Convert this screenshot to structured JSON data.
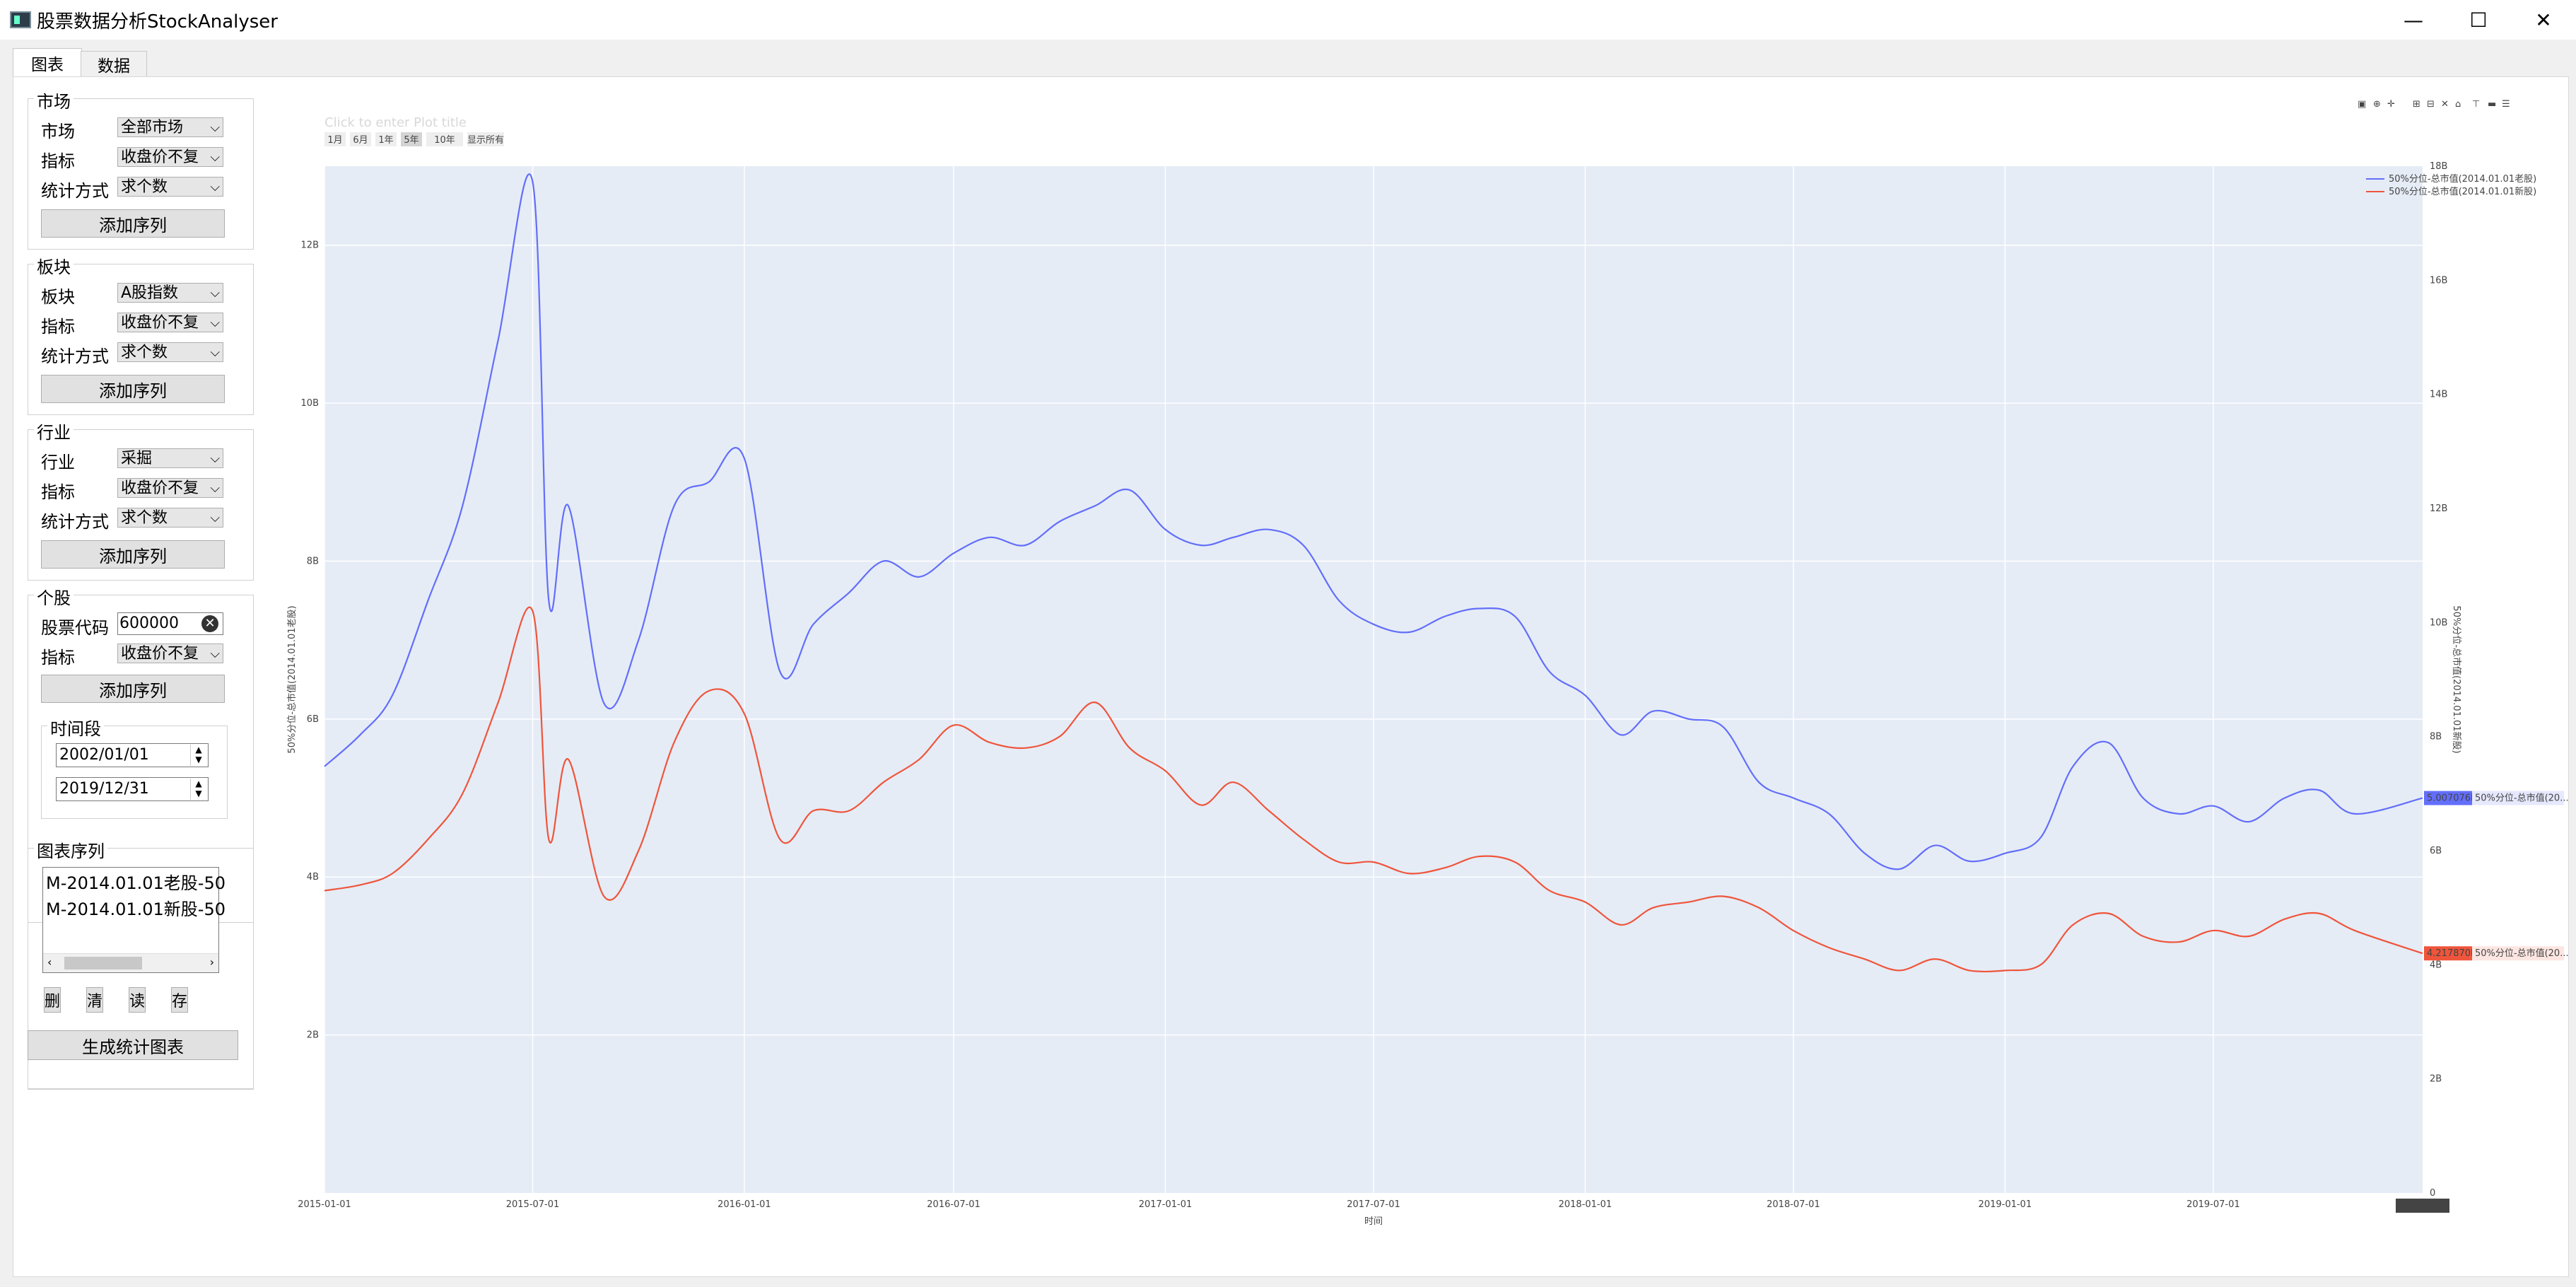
{
  "window": {
    "title": "股票数据分析StockAnalyser",
    "minimize": "—",
    "maximize": "☐",
    "close": "✕"
  },
  "tabs": [
    {
      "label": "图表"
    },
    {
      "label": "数据"
    }
  ],
  "market": {
    "title": "市场",
    "field_label": "市场",
    "field_value": "全部市场",
    "indicator_label": "指标",
    "indicator_value": "收盘价不复",
    "stat_label": "统计方式",
    "stat_value": "求个数",
    "add_label": "添加序列"
  },
  "sector": {
    "title": "板块",
    "field_label": "板块",
    "field_value": "A股指数",
    "indicator_label": "指标",
    "indicator_value": "收盘价不复",
    "stat_label": "统计方式",
    "stat_value": "求个数",
    "add_label": "添加序列"
  },
  "industry": {
    "title": "行业",
    "field_label": "行业",
    "field_value": "采掘",
    "indicator_label": "指标",
    "indicator_value": "收盘价不复",
    "stat_label": "统计方式",
    "stat_value": "求个数",
    "add_label": "添加序列"
  },
  "stock": {
    "title": "个股",
    "code_label": "股票代码",
    "code_value": "600000",
    "indicator_label": "指标",
    "indicator_value": "收盘价不复",
    "add_label": "添加序列"
  },
  "period": {
    "title": "时间段",
    "start": "2002/01/01",
    "end": "2019/12/31"
  },
  "series_list": {
    "title": "图表序列",
    "items": [
      "M-2014.01.01老股-50",
      "M-2014.01.01新股-50"
    ],
    "delete": "删",
    "clear": "清",
    "read": "读",
    "save": "存"
  },
  "generate_label": "生成统计图表",
  "chart": {
    "range_buttons": [
      "1月",
      "6月",
      "1年",
      "5年",
      "10年",
      "显示所有"
    ],
    "title_placeholder": "Click to enter Plot title",
    "xlabel": "时间",
    "ylabel_left": "50%分位-总市值(2014.01.01老股)",
    "ylabel_right": "50%分位-总市值(2014.01.01新股)",
    "legend": [
      "50%分位-总市值(2014.01.01老股)",
      "50%分位-总市值(2014.01.01新股)"
    ],
    "x_ticks": [
      "2015-01-01",
      "2015-07-01",
      "2016-01-01",
      "2016-07-01",
      "2017-01-01",
      "2017-07-01",
      "2018-01-01",
      "2018-07-01",
      "2019-01-01",
      "2019-07-01"
    ],
    "y_left_ticks": [
      "2B",
      "4B",
      "6B",
      "8B",
      "10B",
      "12B"
    ],
    "y_right_ticks": [
      "0",
      "2B",
      "4B",
      "6B",
      "8B",
      "10B",
      "12B",
      "14B",
      "16B",
      "18B"
    ],
    "hover_x": "2019-12-30",
    "hover_blue_value": "5.007076B",
    "hover_blue_label": "50%分位-总市值(20...",
    "hover_red_value": "4.217870B",
    "hover_red_label": "50%分位-总市值(20...",
    "colors": {
      "blue": "#636efa",
      "red": "#ef553b",
      "plot_bg": "#e5ecf6"
    }
  },
  "chart_data": {
    "type": "line",
    "xlabel": "时间",
    "ylabel": "50%分位-总市值(2014.01.01老股)",
    "y2label": "50%分位-总市值(2014.01.01新股)",
    "ylim": [
      0,
      13
    ],
    "y2lim": [
      0,
      18
    ],
    "x": [
      "2015-01-01",
      "2015-02-01",
      "2015-03-01",
      "2015-04-01",
      "2015-05-01",
      "2015-06-01",
      "2015-07-01",
      "2015-07-15",
      "2015-08-01",
      "2015-09-01",
      "2015-10-01",
      "2015-11-01",
      "2015-12-01",
      "2016-01-01",
      "2016-02-01",
      "2016-03-01",
      "2016-04-01",
      "2016-05-01",
      "2016-06-01",
      "2016-07-01",
      "2016-08-01",
      "2016-09-01",
      "2016-10-01",
      "2016-11-01",
      "2016-12-01",
      "2017-01-01",
      "2017-02-01",
      "2017-03-01",
      "2017-04-01",
      "2017-05-01",
      "2017-06-01",
      "2017-07-01",
      "2017-08-01",
      "2017-09-01",
      "2017-10-01",
      "2017-11-01",
      "2017-12-01",
      "2018-01-01",
      "2018-02-01",
      "2018-03-01",
      "2018-04-01",
      "2018-05-01",
      "2018-06-01",
      "2018-07-01",
      "2018-08-01",
      "2018-09-01",
      "2018-10-01",
      "2018-11-01",
      "2018-12-01",
      "2019-01-01",
      "2019-02-01",
      "2019-03-01",
      "2019-04-01",
      "2019-05-01",
      "2019-06-01",
      "2019-07-01",
      "2019-08-01",
      "2019-09-01",
      "2019-10-01",
      "2019-11-01",
      "2019-12-30"
    ],
    "series": [
      {
        "name": "50%分位-总市值(2014.01.01老股)",
        "axis": "left",
        "values": [
          5.4,
          5.8,
          6.3,
          7.5,
          8.7,
          10.8,
          12.8,
          7.5,
          8.7,
          6.2,
          7.0,
          8.7,
          9.0,
          9.3,
          6.6,
          7.2,
          7.6,
          8.0,
          7.8,
          8.1,
          8.3,
          8.2,
          8.5,
          8.7,
          8.9,
          8.4,
          8.2,
          8.3,
          8.4,
          8.2,
          7.5,
          7.2,
          7.1,
          7.3,
          7.4,
          7.3,
          6.6,
          6.3,
          5.8,
          6.1,
          6.0,
          5.9,
          5.2,
          5.0,
          4.8,
          4.3,
          4.1,
          4.4,
          4.2,
          4.3,
          4.5,
          5.4,
          5.7,
          5.0,
          4.8,
          4.9,
          4.7,
          5.0,
          5.1,
          4.8,
          5.0
        ]
      },
      {
        "name": "50%分位-总市值(2014.01.01新股)",
        "axis": "right",
        "values": [
          5.3,
          5.4,
          5.6,
          6.2,
          7.0,
          8.6,
          10.2,
          6.2,
          7.6,
          5.2,
          6.0,
          7.9,
          8.8,
          8.4,
          6.2,
          6.7,
          6.7,
          7.2,
          7.6,
          8.2,
          7.9,
          7.8,
          8.0,
          8.6,
          7.8,
          7.4,
          6.8,
          7.2,
          6.7,
          6.2,
          5.8,
          5.8,
          5.6,
          5.7,
          5.9,
          5.8,
          5.3,
          5.1,
          4.7,
          5.0,
          5.1,
          5.2,
          5.0,
          4.6,
          4.3,
          4.1,
          3.9,
          4.1,
          3.9,
          3.9,
          4.0,
          4.7,
          4.9,
          4.5,
          4.4,
          4.6,
          4.5,
          4.8,
          4.9,
          4.6,
          4.2
        ]
      }
    ]
  }
}
